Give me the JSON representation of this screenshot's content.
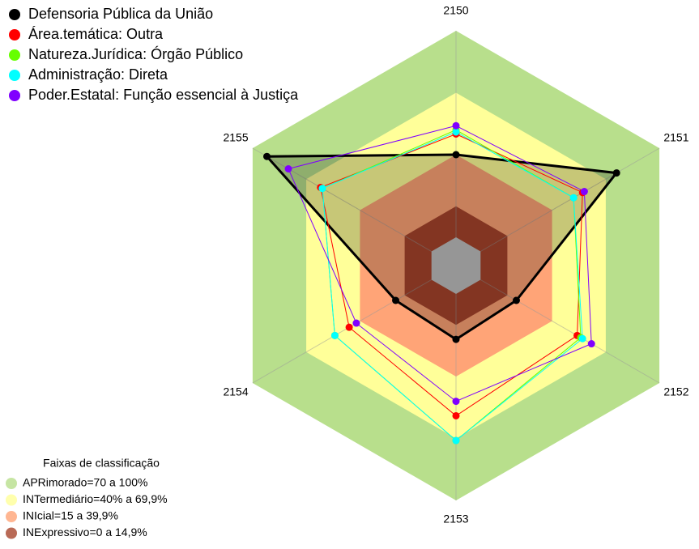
{
  "chart_data": {
    "type": "radar",
    "categories": [
      "2150",
      "2151",
      "2152",
      "2153",
      "2154",
      "2155"
    ],
    "ylim": [
      0,
      100
    ],
    "series": [
      {
        "name": "Defensoria Pública da União",
        "color": "#000000",
        "values": [
          40,
          76,
          20,
          22,
          20,
          92
        ]
      },
      {
        "name": "Área.temática: Outra",
        "color": "#ff0000",
        "values": [
          50,
          57,
          54,
          59,
          46,
          62
        ]
      },
      {
        "name": "Natureza.Jurídica: Órgão Público",
        "color": "#66ff00",
        "values": [
          52,
          52,
          56,
          71,
          54,
          61
        ]
      },
      {
        "name": "Administração: Direta",
        "color": "#00ffff",
        "values": [
          51,
          52,
          57,
          71,
          54,
          61
        ]
      },
      {
        "name": "Poder.Estatal: Função essencial à Justiça",
        "color": "#8000ff",
        "values": [
          54,
          58,
          62,
          52,
          42,
          80
        ]
      }
    ],
    "bands": {
      "title": "Faixas de classificação",
      "items": [
        {
          "name": "APRimorado=70 a 100%",
          "to": 100,
          "color": "#b8df8c"
        },
        {
          "name": "INTermediário=40% a 69,9%",
          "to": 70,
          "color": "#ffff99"
        },
        {
          "name": "INIcial=15 a 39,9%",
          "to": 40,
          "color": "#ffa477"
        },
        {
          "name": "INExpressivo=0 a 14,9%",
          "to": 15,
          "color": "#a8452c"
        }
      ]
    }
  }
}
